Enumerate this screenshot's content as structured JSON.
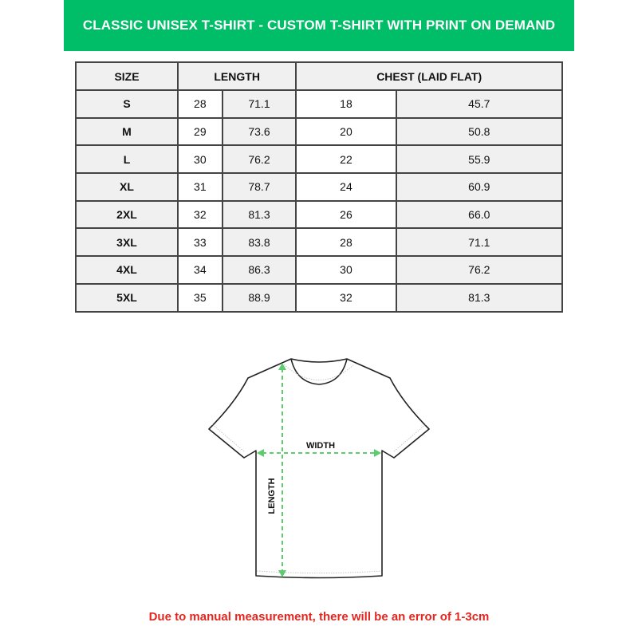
{
  "title": "CLASSIC UNISEX T-SHIRT - CUSTOM T-SHIRT WITH PRINT ON DEMAND",
  "table": {
    "headers": [
      "SIZE",
      "LENGTH",
      "CHEST (LAID FLAT)"
    ],
    "rows": [
      [
        "S",
        "28",
        "71.1",
        "18",
        "45.7"
      ],
      [
        "M",
        "29",
        "73.6",
        "20",
        "50.8"
      ],
      [
        "L",
        "30",
        "76.2",
        "22",
        "55.9"
      ],
      [
        "XL",
        "31",
        "78.7",
        "24",
        "60.9"
      ],
      [
        "2XL",
        "32",
        "81.3",
        "26",
        "66.0"
      ],
      [
        "3XL",
        "33",
        "83.8",
        "28",
        "71.1"
      ],
      [
        "4XL",
        "34",
        "86.3",
        "30",
        "76.2"
      ],
      [
        "5XL",
        "35",
        "88.9",
        "32",
        "81.3"
      ]
    ]
  },
  "diagram": {
    "width_label": "WIDTH",
    "length_label": "LENGTH",
    "arrow_color": "#5dcc6e"
  },
  "note": "Due to manual measurement, there will be an error of 1-3cm",
  "colors": {
    "banner": "#00bd68",
    "note": "#e3261f"
  }
}
